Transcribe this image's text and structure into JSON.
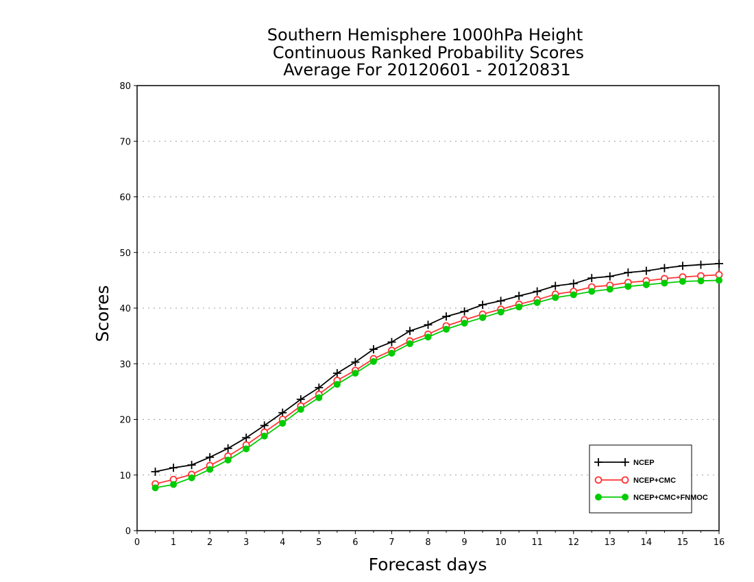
{
  "chart_data": {
    "type": "line",
    "title": [
      "Southern Hemisphere 1000hPa Height",
      "Continuous Ranked Probability Scores",
      "Average For 20120601 - 20120831"
    ],
    "xlabel": "Forecast days",
    "ylabel": "Scores",
    "xlim": [
      0,
      16
    ],
    "ylim": [
      0,
      80
    ],
    "xticks": [
      "0",
      "1",
      "2",
      "3",
      "4",
      "5",
      "6",
      "7",
      "8",
      "9",
      "10",
      "11",
      "12",
      "13",
      "14",
      "15",
      "16"
    ],
    "yticks": [
      "0",
      "10",
      "20",
      "30",
      "40",
      "50",
      "60",
      "70",
      "80"
    ],
    "grid": "horizontal dotted",
    "legend_position": "bottom-right",
    "x": [
      0.5,
      1,
      1.5,
      2,
      2.5,
      3,
      3.5,
      4,
      4.5,
      5,
      5.5,
      6,
      6.5,
      7,
      7.5,
      8,
      8.5,
      9,
      9.5,
      10,
      10.5,
      11,
      11.5,
      12,
      12.5,
      13,
      13.5,
      14,
      14.5,
      15,
      15.5,
      16
    ],
    "series": [
      {
        "name": "NCEP",
        "color": "#000000",
        "marker": "plus",
        "values": [
          10.6,
          11.3,
          11.8,
          13.2,
          14.8,
          16.7,
          18.9,
          21.2,
          23.6,
          25.7,
          28.3,
          30.3,
          32.6,
          33.9,
          35.9,
          37.0,
          38.5,
          39.4,
          40.6,
          41.3,
          42.2,
          43.0,
          44.0,
          44.4,
          45.4,
          45.7,
          46.4,
          46.7,
          47.2,
          47.6,
          47.8,
          48.0
        ]
      },
      {
        "name": "NCEP+CMC",
        "color": "#ff3333",
        "marker": "open-circle",
        "values": [
          8.4,
          9.2,
          10.1,
          11.7,
          13.4,
          15.4,
          17.7,
          20.0,
          22.4,
          24.5,
          27.0,
          28.8,
          30.9,
          32.4,
          34.1,
          35.3,
          36.8,
          37.9,
          38.9,
          39.8,
          40.7,
          41.5,
          42.5,
          43.0,
          43.8,
          44.1,
          44.6,
          44.9,
          45.3,
          45.6,
          45.8,
          46.0
        ]
      },
      {
        "name": "NCEP+CMC+FNMOC",
        "color": "#00cc00",
        "marker": "filled-circle",
        "values": [
          7.7,
          8.3,
          9.5,
          11.0,
          12.7,
          14.7,
          17.0,
          19.3,
          21.8,
          23.9,
          26.3,
          28.3,
          30.4,
          31.9,
          33.6,
          34.8,
          36.2,
          37.3,
          38.3,
          39.3,
          40.2,
          41.0,
          41.9,
          42.4,
          43.0,
          43.4,
          43.9,
          44.2,
          44.5,
          44.8,
          44.9,
          45.0
        ]
      }
    ]
  }
}
